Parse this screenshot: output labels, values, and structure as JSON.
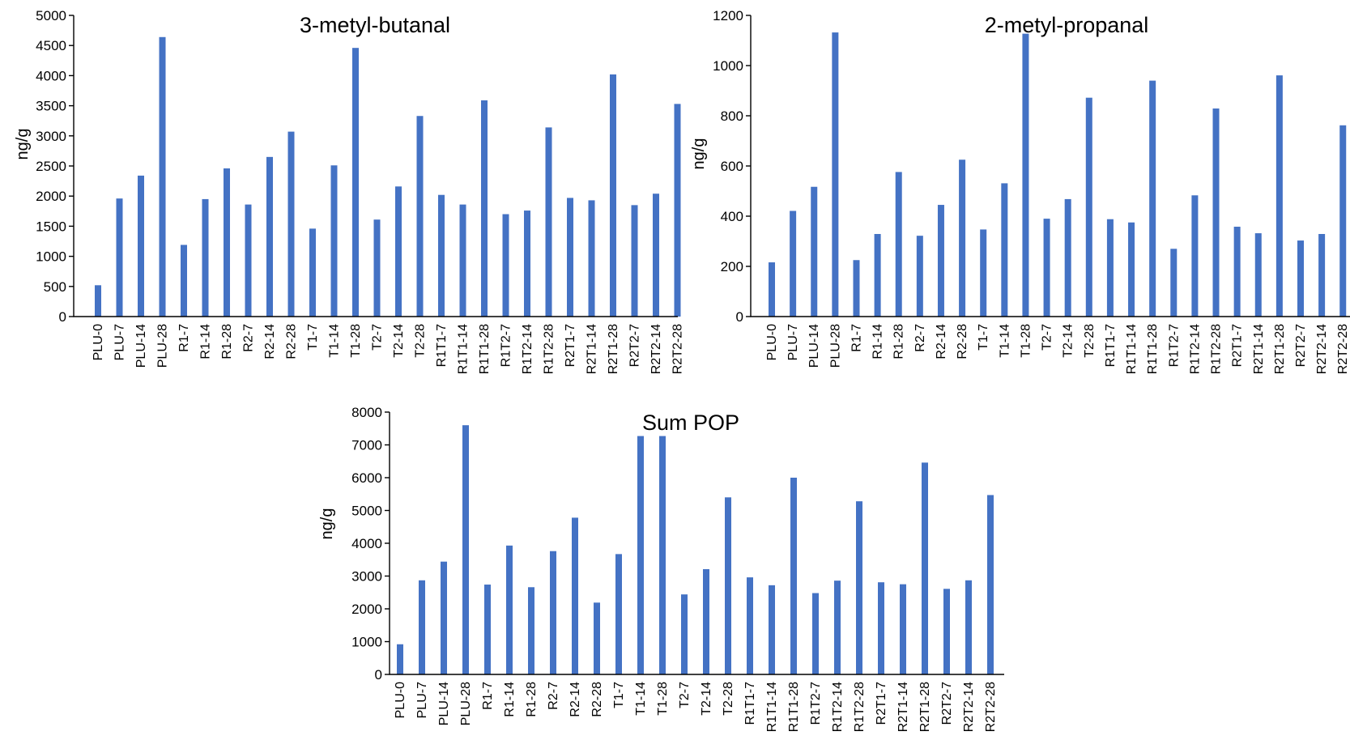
{
  "chart_data": [
    {
      "type": "bar",
      "title": "3-metyl-butanal",
      "xlabel": "",
      "ylabel": "ng/g",
      "ylim": [
        0,
        5000
      ],
      "yticks": [
        0,
        500,
        1000,
        1500,
        2000,
        2500,
        3000,
        3500,
        4000,
        4500,
        5000
      ],
      "grid": false,
      "legend": "none",
      "color": "#4472C4",
      "categories": [
        "PLU-0",
        "PLU-7",
        "PLU-14",
        "PLU-28",
        "R1-7",
        "R1-14",
        "R1-28",
        "R2-7",
        "R2-14",
        "R2-28",
        "T1-7",
        "T1-14",
        "T1-28",
        "T2-7",
        "T2-14",
        "T2-28",
        "R1T1-7",
        "R1T1-14",
        "R1T1-28",
        "R1T2-7",
        "R1T2-14",
        "R1T2-28",
        "R2T1-7",
        "R2T1-14",
        "R2T1-28",
        "R2T2-7",
        "R2T2-14",
        "R2T2-28"
      ],
      "values": [
        520,
        1960,
        2340,
        4640,
        1190,
        1950,
        2460,
        1860,
        2650,
        3070,
        1460,
        2510,
        4460,
        1610,
        2160,
        3330,
        2020,
        1860,
        3590,
        1700,
        1760,
        3140,
        1970,
        1930,
        4020,
        1850,
        2040,
        3530
      ]
    },
    {
      "type": "bar",
      "title": "2-metyl-propanal",
      "xlabel": "",
      "ylabel": "ng/g",
      "ylim": [
        0,
        1200
      ],
      "yticks": [
        0,
        200,
        400,
        600,
        800,
        1000,
        1200
      ],
      "grid": false,
      "legend": "none",
      "color": "#4472C4",
      "categories": [
        "PLU-0",
        "PLU-7",
        "PLU-14",
        "PLU-28",
        "R1-7",
        "R1-14",
        "R1-28",
        "R2-7",
        "R2-14",
        "R2-28",
        "T1-7",
        "T1-14",
        "T1-28",
        "T2-7",
        "T2-14",
        "T2-28",
        "R1T1-7",
        "R1T1-14",
        "R1T1-28",
        "R1T2-7",
        "R1T2-14",
        "R1T2-28",
        "R2T1-7",
        "R2T1-14",
        "R2T1-28",
        "R2T2-7",
        "R2T2-14",
        "R2T2-28"
      ],
      "values": [
        216,
        421,
        517,
        1132,
        225,
        329,
        576,
        322,
        445,
        625,
        347,
        531,
        1127,
        390,
        468,
        872,
        388,
        375,
        940,
        270,
        483,
        829,
        358,
        332,
        961,
        303,
        329,
        762
      ]
    },
    {
      "type": "bar",
      "title": "Sum POP",
      "xlabel": "",
      "ylabel": "ng/g",
      "ylim": [
        0,
        8000
      ],
      "yticks": [
        0,
        1000,
        2000,
        3000,
        4000,
        5000,
        6000,
        7000,
        8000
      ],
      "grid": false,
      "legend": "none",
      "color": "#4472C4",
      "categories": [
        "PLU-0",
        "PLU-7",
        "PLU-14",
        "PLU-28",
        "R1-7",
        "R1-14",
        "R1-28",
        "R2-7",
        "R2-14",
        "R2-28",
        "T1-7",
        "T1-14",
        "T1-28",
        "T2-7",
        "T2-14",
        "T2-28",
        "R1T1-7",
        "R1T1-14",
        "R1T1-28",
        "R1T2-7",
        "R1T2-14",
        "R1T2-28",
        "R2T1-7",
        "R2T1-14",
        "R2T1-28",
        "R2T2-7",
        "R2T2-14",
        "R2T2-28"
      ],
      "values": [
        920,
        2870,
        3440,
        7600,
        2740,
        3930,
        2660,
        3760,
        4780,
        2190,
        3670,
        7270,
        7270,
        2440,
        3210,
        5400,
        2960,
        2720,
        6000,
        2480,
        2860,
        5280,
        2810,
        2750,
        6460,
        2610,
        2870,
        5470
      ]
    }
  ]
}
